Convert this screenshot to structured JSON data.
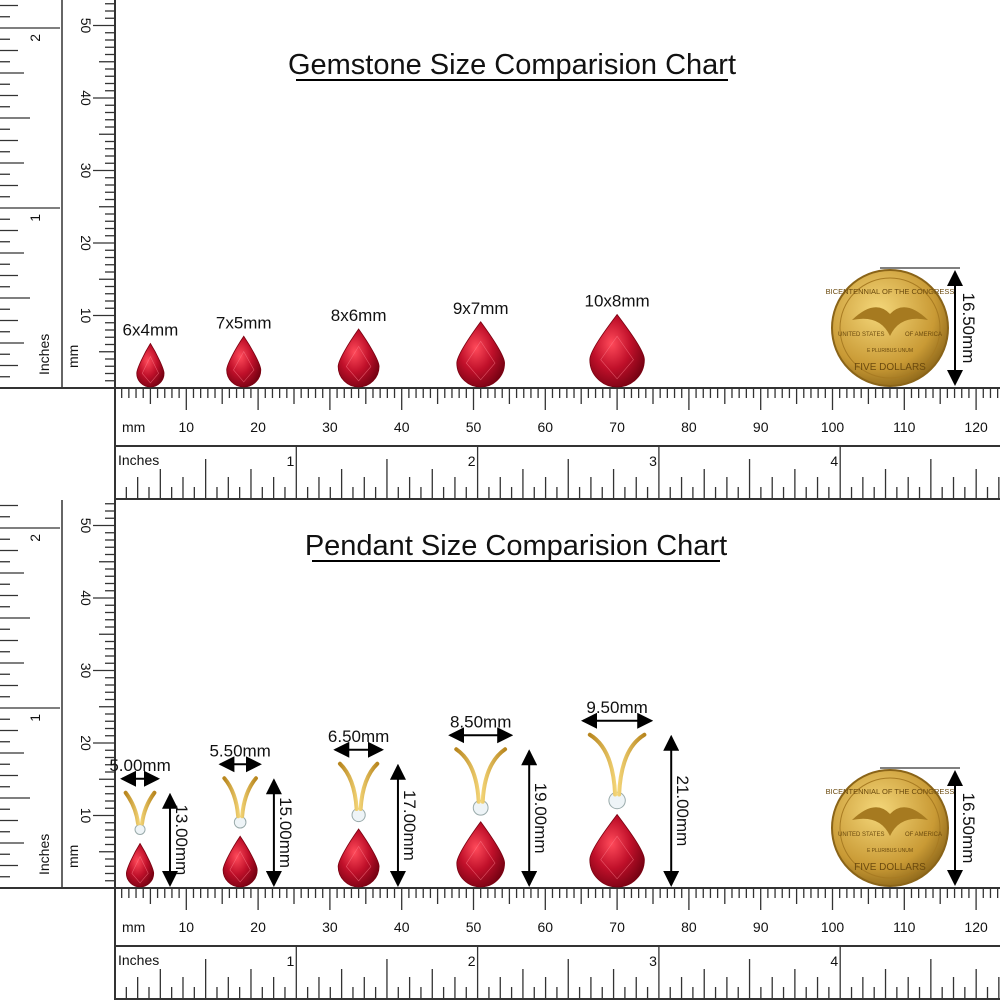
{
  "colors": {
    "gem": "#c0102a",
    "gold": "#d9b24a",
    "ruler": "#333333"
  },
  "gemstone_chart": {
    "title": "Gemstone Size Comparision Chart",
    "gems": [
      {
        "label": "6x4mm",
        "length_mm": 6,
        "width_mm": 4,
        "pos_mm": 5
      },
      {
        "label": "7x5mm",
        "length_mm": 7,
        "width_mm": 5,
        "pos_mm": 18
      },
      {
        "label": "8x6mm",
        "length_mm": 8,
        "width_mm": 6,
        "pos_mm": 34
      },
      {
        "label": "9x7mm",
        "length_mm": 9,
        "width_mm": 7,
        "pos_mm": 51
      },
      {
        "label": "10x8mm",
        "length_mm": 10,
        "width_mm": 8,
        "pos_mm": 70
      }
    ],
    "coin_label": "16.50mm"
  },
  "pendant_chart": {
    "title": "Pendant Size Comparision Chart",
    "pendants": [
      {
        "width": "5.00mm",
        "height": "13.00mm",
        "gem_l": 6,
        "gem_w": 4,
        "pos_mm": 3,
        "w_mm": 5,
        "h_mm": 13
      },
      {
        "width": "5.50mm",
        "height": "15.00mm",
        "gem_l": 7,
        "gem_w": 5,
        "pos_mm": 17.5,
        "w_mm": 5.5,
        "h_mm": 15
      },
      {
        "width": "6.50mm",
        "height": "17.00mm",
        "gem_l": 8,
        "gem_w": 6,
        "pos_mm": 34,
        "w_mm": 6.5,
        "h_mm": 17
      },
      {
        "width": "8.50mm",
        "height": "19.00mm",
        "gem_l": 9,
        "gem_w": 7,
        "pos_mm": 51,
        "w_mm": 8.5,
        "h_mm": 19
      },
      {
        "width": "9.50mm",
        "height": "21.00mm",
        "gem_l": 10,
        "gem_w": 8,
        "pos_mm": 70,
        "w_mm": 9.5,
        "h_mm": 21
      }
    ],
    "coin_label": "16.50mm"
  },
  "coin": {
    "top": "BICENTENNIAL OF THE CONGRESS",
    "left": "UNITED STATES",
    "right": "OF AMERICA",
    "motto": "E PLURIBUS UNUM",
    "bottom": "FIVE DOLLARS"
  },
  "rulers": {
    "mm_unit": "mm",
    "inch_unit": "Inches",
    "mm_labels": [
      "10",
      "20",
      "30",
      "40",
      "50",
      "60",
      "70",
      "80",
      "90",
      "100",
      "110",
      "120"
    ],
    "inch_labels": [
      "1",
      "2",
      "3",
      "4"
    ],
    "vertical_mm_labels": [
      "10",
      "20",
      "30",
      "40",
      "50"
    ],
    "vertical_inch_labels": [
      "1",
      "2"
    ]
  }
}
